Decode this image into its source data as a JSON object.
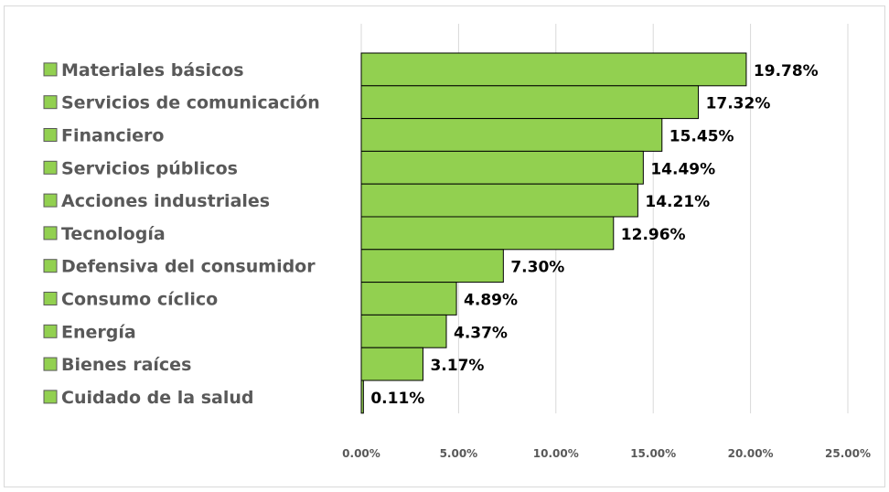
{
  "chart_data": {
    "type": "bar",
    "orientation": "horizontal",
    "title": "",
    "xlabel": "",
    "ylabel": "",
    "categories": [
      "Materiales básicos",
      "Servicios de comunicación",
      "Financiero",
      "Servicios públicos",
      "Acciones industriales",
      "Tecnología",
      "Defensiva del consumidor",
      "Consumo cíclico",
      "Energía",
      "Bienes raíces",
      "Cuidado de la salud"
    ],
    "values": [
      19.78,
      17.32,
      15.45,
      14.49,
      14.21,
      12.96,
      7.3,
      4.89,
      4.37,
      3.17,
      0.11
    ],
    "data_labels": [
      "19.78%",
      "17.32%",
      "15.45%",
      "14.49%",
      "14.21%",
      "12.96%",
      "7.30%",
      "4.89%",
      "4.37%",
      "3.17%",
      "0.11%"
    ],
    "xlim": [
      0,
      25
    ],
    "x_ticks": [
      0,
      5,
      10,
      15,
      20,
      25
    ],
    "x_tick_labels": [
      "0.00%",
      "5.00%",
      "10.00%",
      "15.00%",
      "20.00%",
      "25.00%"
    ],
    "grid": "vertical",
    "legend_position": "left",
    "colors": {
      "bar_fill": "#92d050",
      "bar_stroke": "#000000",
      "gridline": "#d9d9d9",
      "category_text": "#595959",
      "tick_text": "#595959",
      "data_label_text": "#000000"
    }
  }
}
